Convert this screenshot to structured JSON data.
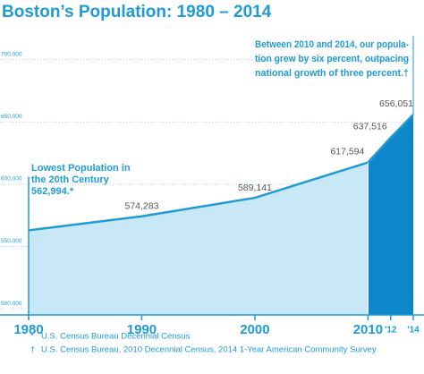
{
  "chart_data": {
    "type": "area",
    "title": "Boston’s Population: 1980 – 2014",
    "x": [
      1980,
      1990,
      2000,
      2010,
      2012,
      2014
    ],
    "values": [
      562994,
      574283,
      589141,
      617594,
      637516,
      656051
    ],
    "value_labels": [
      "562,994.*",
      "574,283",
      "589,141",
      "617,594",
      "637,516",
      "656,051"
    ],
    "xlim": [
      1980,
      2014
    ],
    "xticks": [
      1980,
      1990,
      2000,
      2010,
      {
        "value": 2012,
        "label": "'12"
      },
      {
        "value": 2014,
        "label": "'14"
      }
    ],
    "ylim": [
      495000,
      710000
    ],
    "yticks": [
      {
        "value": 500000,
        "label": "500,000"
      },
      {
        "value": 550000,
        "label": "550,000"
      },
      {
        "value": 600000,
        "label": "600,000"
      },
      {
        "value": 650000,
        "label": "650,000"
      },
      {
        "value": 700000,
        "label": "700,000"
      }
    ],
    "grid": true,
    "color": "#1e9bd7",
    "area_colors": [
      "#c8e8f7",
      "#0d87c9"
    ],
    "annotations": [
      {
        "lines": [
          "Lowest Population in",
          "the 20th Century"
        ]
      },
      {
        "lines": [
          "Between 2010 and 2014, our popula-",
          "tion grew by six percent, outpacing",
          "national growth of three percent.†"
        ]
      }
    ],
    "footnotes": [
      {
        "mark": "*",
        "text": "U.S. Census Bureau Decennial Census"
      },
      {
        "mark": "†",
        "text": "U.S. Census Bureau, 2010 Decennial Census, 2014 1-Year American Community Survey"
      }
    ]
  }
}
